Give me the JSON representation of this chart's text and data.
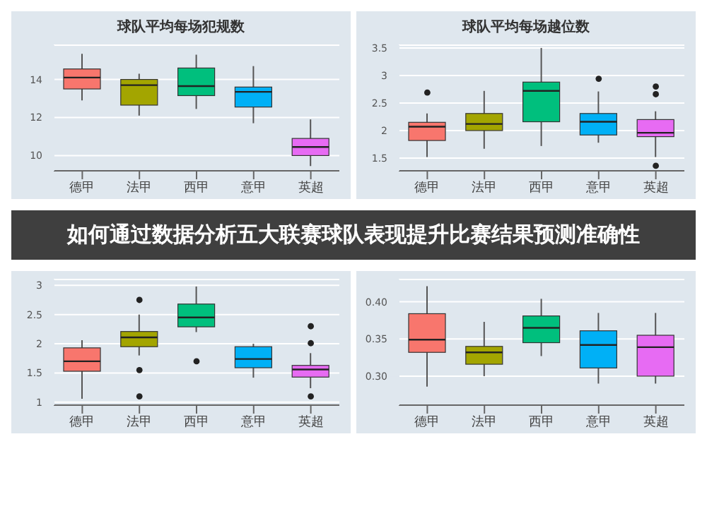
{
  "chart_data": [
    {
      "type": "box",
      "title": "球队平均每场犯规数",
      "categories": [
        "德甲",
        "法甲",
        "西甲",
        "意甲",
        "英超"
      ],
      "colors": [
        "#f8766d",
        "#a3a500",
        "#00bf7d",
        "#00b0f6",
        "#e76bf3"
      ],
      "ylim": [
        9.2,
        15.8
      ],
      "yticks": [
        10,
        12,
        14
      ],
      "grid": "y",
      "boxes": [
        {
          "low": 12.9,
          "q1": 13.5,
          "median": 14.1,
          "q3": 14.55,
          "high": 15.35
        },
        {
          "low": 12.1,
          "q1": 12.65,
          "median": 13.7,
          "q3": 14.0,
          "high": 14.3
        },
        {
          "low": 12.45,
          "q1": 13.15,
          "median": 13.65,
          "q3": 14.6,
          "high": 15.3
        },
        {
          "low": 11.7,
          "q1": 12.55,
          "median": 13.35,
          "q3": 13.6,
          "high": 14.7
        },
        {
          "low": 9.45,
          "q1": 10.0,
          "median": 10.45,
          "q3": 10.9,
          "high": 11.9
        }
      ]
    },
    {
      "type": "box",
      "title": "球队平均每场越位数",
      "categories": [
        "德甲",
        "法甲",
        "西甲",
        "意甲",
        "英超"
      ],
      "colors": [
        "#f8766d",
        "#a3a500",
        "#00bf7d",
        "#00b0f6",
        "#e76bf3"
      ],
      "ylim": [
        1.27,
        3.55
      ],
      "yticks": [
        1.5,
        2.0,
        2.5,
        3.0,
        3.5
      ],
      "grid": "y",
      "boxes": [
        {
          "low": 1.52,
          "q1": 1.82,
          "median": 2.07,
          "q3": 2.15,
          "high": 2.31,
          "outliers": [
            2.69
          ]
        },
        {
          "low": 1.67,
          "q1": 2.0,
          "median": 2.12,
          "q3": 2.31,
          "high": 2.72
        },
        {
          "low": 1.72,
          "q1": 2.16,
          "median": 2.72,
          "q3": 2.88,
          "high": 3.5
        },
        {
          "low": 1.78,
          "q1": 1.92,
          "median": 2.16,
          "q3": 2.31,
          "high": 2.71,
          "outliers": [
            2.94
          ]
        },
        {
          "low": 1.52,
          "q1": 1.89,
          "median": 1.96,
          "q3": 2.2,
          "high": 2.35,
          "outliers": [
            2.8,
            2.66,
            1.36
          ]
        }
      ]
    },
    {
      "type": "other",
      "title": "如何通过数据分析五大联赛球队表现提升比赛结果预测准确性"
    },
    {
      "type": "box",
      "categories": [
        "德甲",
        "法甲",
        "西甲",
        "意甲",
        "英超"
      ],
      "colors": [
        "#f8766d",
        "#a3a500",
        "#00bf7d",
        "#00b0f6",
        "#e76bf3"
      ],
      "ylim": [
        0.95,
        3.1
      ],
      "yticks": [
        1.0,
        1.5,
        2.0,
        2.5,
        3.0
      ],
      "grid": "y",
      "boxes": [
        {
          "low": 1.06,
          "q1": 1.53,
          "median": 1.7,
          "q3": 1.93,
          "high": 2.06
        },
        {
          "low": 1.8,
          "q1": 1.95,
          "median": 2.11,
          "q3": 2.21,
          "high": 2.5,
          "outliers": [
            2.75,
            1.55,
            1.1
          ]
        },
        {
          "low": 2.2,
          "q1": 2.29,
          "median": 2.45,
          "q3": 2.68,
          "high": 2.98,
          "outliers": [
            1.7
          ]
        },
        {
          "low": 1.42,
          "q1": 1.59,
          "median": 1.74,
          "q3": 1.95,
          "high": 2.0
        },
        {
          "low": 1.24,
          "q1": 1.43,
          "median": 1.56,
          "q3": 1.63,
          "high": 1.84,
          "outliers": [
            2.3,
            2.01,
            1.1
          ]
        }
      ]
    },
    {
      "type": "box",
      "categories": [
        "德甲",
        "法甲",
        "西甲",
        "意甲",
        "英超"
      ],
      "colors": [
        "#f8766d",
        "#a3a500",
        "#00bf7d",
        "#00b0f6",
        "#e76bf3"
      ],
      "ylim": [
        0.261,
        0.43
      ],
      "yticks": [
        {
          "value": 0.3,
          "label": "0.30"
        },
        {
          "value": 0.35,
          "label": "0.35"
        },
        {
          "value": 0.4,
          "label": "0.40"
        }
      ],
      "grid": "y",
      "boxes": [
        {
          "low": 0.286,
          "q1": 0.332,
          "median": 0.349,
          "q3": 0.384,
          "high": 0.421
        },
        {
          "low": 0.3,
          "q1": 0.316,
          "median": 0.332,
          "q3": 0.34,
          "high": 0.373
        },
        {
          "low": 0.327,
          "q1": 0.345,
          "median": 0.365,
          "q3": 0.381,
          "high": 0.404
        },
        {
          "low": 0.29,
          "q1": 0.311,
          "median": 0.342,
          "q3": 0.361,
          "high": 0.385
        },
        {
          "low": 0.29,
          "q1": 0.3,
          "median": 0.339,
          "q3": 0.355,
          "high": 0.385
        }
      ]
    }
  ]
}
